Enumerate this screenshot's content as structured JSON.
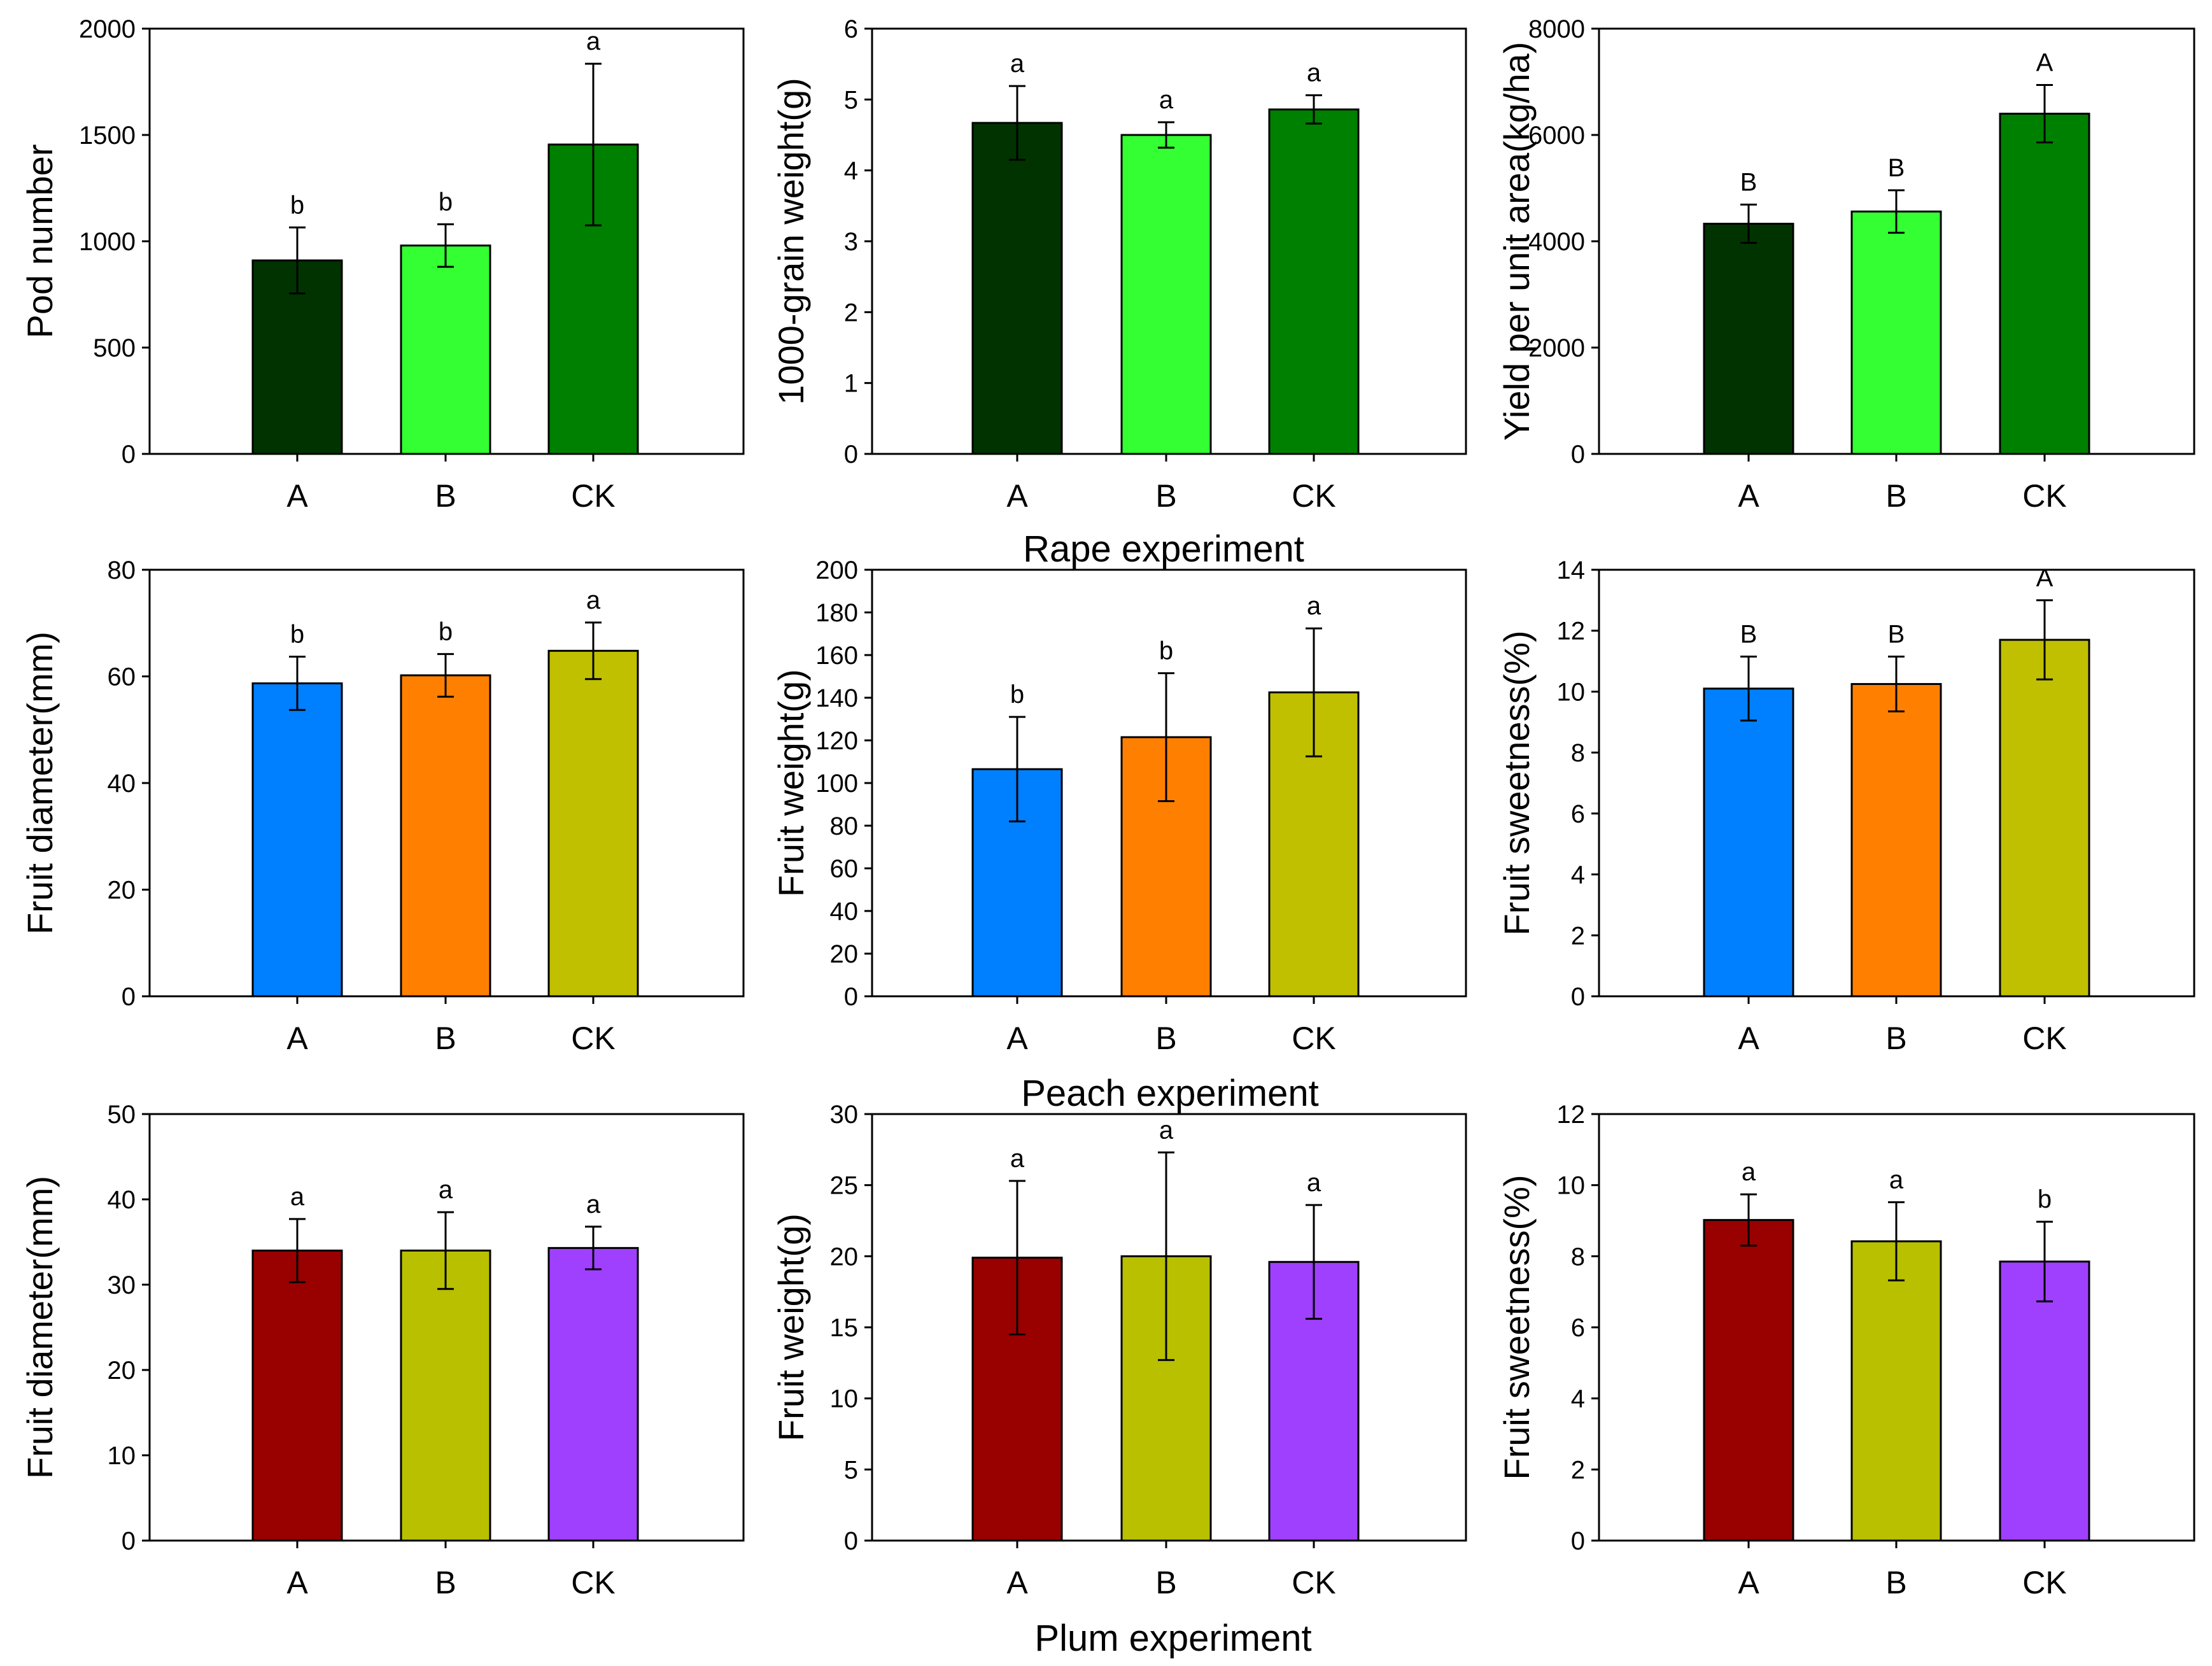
{
  "group_titles": [
    "Rape experiment",
    "Peach experiment",
    "Plum experiment"
  ],
  "chart_data": [
    {
      "type": "bar",
      "group": "Rape experiment",
      "ylabel": "Pod number",
      "categories": [
        "A",
        "B",
        "CK"
      ],
      "ylim": [
        0,
        2000
      ],
      "yticks": [
        0,
        500,
        1000,
        1500,
        2000
      ],
      "values": [
        910,
        980,
        1455
      ],
      "errors": [
        155,
        100,
        380
      ],
      "significance": [
        "b",
        "b",
        "a"
      ],
      "colors": [
        "#003300",
        "#33ff33",
        "#008000"
      ]
    },
    {
      "type": "bar",
      "group": "Rape experiment",
      "ylabel": "1000-grain weight(g)",
      "categories": [
        "A",
        "B",
        "CK"
      ],
      "ylim": [
        0,
        6
      ],
      "yticks": [
        0,
        1,
        2,
        3,
        4,
        5,
        6
      ],
      "values": [
        4.67,
        4.5,
        4.86
      ],
      "errors": [
        0.52,
        0.18,
        0.2
      ],
      "significance": [
        "a",
        "a",
        "a"
      ],
      "colors": [
        "#003300",
        "#33ff33",
        "#008000"
      ]
    },
    {
      "type": "bar",
      "group": "Rape experiment",
      "ylabel": "Yield per unit area(kg/ha)",
      "categories": [
        "A",
        "B",
        "CK"
      ],
      "ylim": [
        0,
        8000
      ],
      "yticks": [
        0,
        2000,
        4000,
        6000,
        8000
      ],
      "values": [
        4330,
        4560,
        6400
      ],
      "errors": [
        360,
        400,
        540
      ],
      "significance": [
        "B",
        "B",
        "A"
      ],
      "colors": [
        "#003300",
        "#33ff33",
        "#008000"
      ]
    },
    {
      "type": "bar",
      "group": "Peach experiment",
      "ylabel": "Fruit diameter(mm)",
      "categories": [
        "A",
        "B",
        "CK"
      ],
      "ylim": [
        0,
        80
      ],
      "yticks": [
        0,
        20,
        40,
        60,
        80
      ],
      "values": [
        58.7,
        60.2,
        64.8
      ],
      "errors": [
        5,
        4,
        5.3
      ],
      "significance": [
        "b",
        "b",
        "a"
      ],
      "colors": [
        "#0080ff",
        "#ff8000",
        "#c0c000"
      ]
    },
    {
      "type": "bar",
      "group": "Peach experiment",
      "ylabel": "Fruit weight(g)",
      "categories": [
        "A",
        "B",
        "CK"
      ],
      "ylim": [
        0,
        200
      ],
      "yticks": [
        0,
        20,
        40,
        60,
        80,
        100,
        120,
        140,
        160,
        180,
        200
      ],
      "values": [
        106.5,
        121.5,
        142.5
      ],
      "errors": [
        24.5,
        30,
        30
      ],
      "significance": [
        "b",
        "b",
        "a"
      ],
      "colors": [
        "#0080ff",
        "#ff8000",
        "#c0c000"
      ]
    },
    {
      "type": "bar",
      "group": "Peach experiment",
      "ylabel": "Fruit sweetness(%)",
      "categories": [
        "A",
        "B",
        "CK"
      ],
      "ylim": [
        0,
        14
      ],
      "yticks": [
        0,
        2,
        4,
        6,
        8,
        10,
        12,
        14
      ],
      "values": [
        10.1,
        10.25,
        11.7
      ],
      "errors": [
        1.05,
        0.9,
        1.3
      ],
      "significance": [
        "B",
        "B",
        "A"
      ],
      "colors": [
        "#0080ff",
        "#ff8000",
        "#c0c000"
      ]
    },
    {
      "type": "bar",
      "group": "Plum experiment",
      "ylabel": "Fruit diameter(mm)",
      "categories": [
        "A",
        "B",
        "CK"
      ],
      "ylim": [
        0,
        50
      ],
      "yticks": [
        0,
        10,
        20,
        30,
        40,
        50
      ],
      "values": [
        34,
        34,
        34.3
      ],
      "errors": [
        3.7,
        4.5,
        2.5
      ],
      "significance": [
        "a",
        "a",
        "a"
      ],
      "colors": [
        "#990000",
        "#b8c000",
        "#a040ff"
      ]
    },
    {
      "type": "bar",
      "group": "Plum experiment",
      "ylabel": "Fruit weight(g)",
      "categories": [
        "A",
        "B",
        "CK"
      ],
      "ylim": [
        0,
        30
      ],
      "yticks": [
        0,
        5,
        10,
        15,
        20,
        25,
        30
      ],
      "values": [
        19.9,
        20,
        19.6
      ],
      "errors": [
        5.4,
        7.3,
        4
      ],
      "significance": [
        "a",
        "a",
        "a"
      ],
      "colors": [
        "#990000",
        "#b8c000",
        "#a040ff"
      ]
    },
    {
      "type": "bar",
      "group": "Plum experiment",
      "ylabel": "Fruit sweetness(%)",
      "categories": [
        "A",
        "B",
        "CK"
      ],
      "ylim": [
        0,
        12
      ],
      "yticks": [
        0,
        2,
        4,
        6,
        8,
        10,
        12
      ],
      "values": [
        9.02,
        8.42,
        7.85
      ],
      "errors": [
        0.72,
        1.1,
        1.12
      ],
      "significance": [
        "a",
        "a",
        "b"
      ],
      "colors": [
        "#990000",
        "#b8c000",
        "#a040ff"
      ]
    }
  ]
}
